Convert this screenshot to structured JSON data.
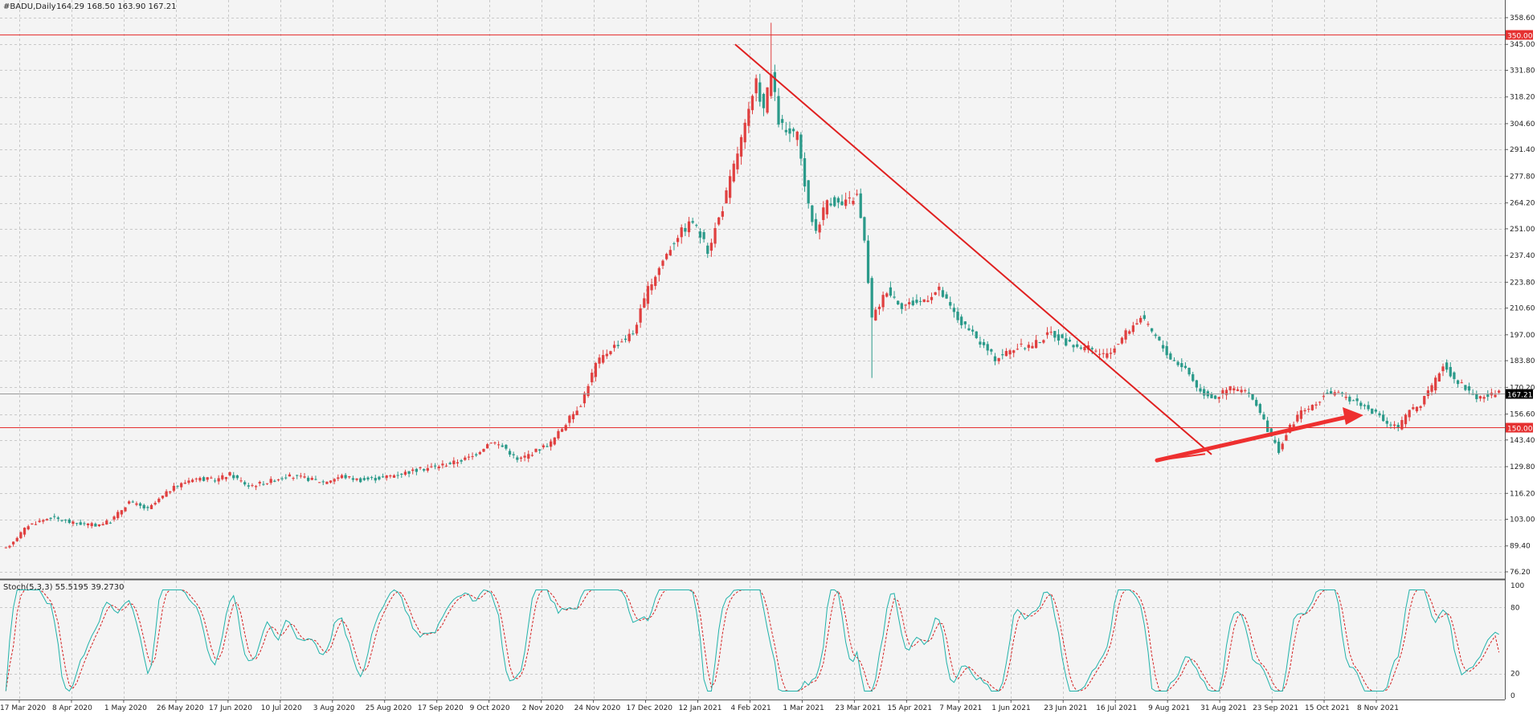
{
  "header": {
    "symbol_info": "#BADU,Daily",
    "ohlc": "164.29 168.50 163.90 167.21"
  },
  "stoch_header": {
    "label": "Stoch(5,3,3) 55.5195 39.2730"
  },
  "colors": {
    "background": "#f4f4f4",
    "grid": "#c8c8c8",
    "bull": "#e04040",
    "bear": "#2b9a8a",
    "level_line": "#e53030",
    "trend_line": "#e02020",
    "stoch_main": "#20b2aa",
    "stoch_signal": "#d42020",
    "axis_text": "#222222"
  },
  "chart_data": [
    {
      "type": "candlestick",
      "title": "#BADU,Daily",
      "x_tick_labels": [
        "17 Mar 2020",
        "8 Apr 2020",
        "1 May 2020",
        "26 May 2020",
        "17 Jun 2020",
        "10 Jul 2020",
        "3 Aug 2020",
        "25 Aug 2020",
        "17 Sep 2020",
        "9 Oct 2020",
        "2 Nov 2020",
        "24 Nov 2020",
        "17 Dec 2020",
        "12 Jan 2021",
        "4 Feb 2021",
        "1 Mar 2021",
        "23 Mar 2021",
        "15 Apr 2021",
        "7 May 2021",
        "1 Jun 2021",
        "23 Jun 2021",
        "16 Jul 2021",
        "9 Aug 2021",
        "31 Aug 2021",
        "23 Sep 2021",
        "15 Oct 2021",
        "8 Nov 2021"
      ],
      "y_tick_labels": [
        "358.60",
        "345.00",
        "331.80",
        "318.20",
        "304.60",
        "291.40",
        "277.80",
        "264.20",
        "251.00",
        "237.40",
        "223.80",
        "210.60",
        "197.00",
        "183.80",
        "170.20",
        "156.60",
        "143.40",
        "129.80",
        "116.20",
        "103.00",
        "89.40",
        "76.20"
      ],
      "ylim": [
        76.2,
        358.6
      ],
      "last_price": "167.21",
      "horizontal_levels": [
        {
          "value": 350.0,
          "label": "350.00"
        },
        {
          "value": 150.0,
          "label": "150.00"
        }
      ],
      "anchor_closes": [
        [
          0,
          88
        ],
        [
          6,
          100
        ],
        [
          12,
          104
        ],
        [
          18,
          101
        ],
        [
          24,
          100
        ],
        [
          28,
          102
        ],
        [
          33,
          112
        ],
        [
          38,
          108
        ],
        [
          44,
          118
        ],
        [
          50,
          124
        ],
        [
          56,
          123
        ],
        [
          60,
          126
        ],
        [
          65,
          120
        ],
        [
          70,
          122
        ],
        [
          75,
          125
        ],
        [
          80,
          124
        ],
        [
          85,
          122
        ],
        [
          90,
          125
        ],
        [
          95,
          123
        ],
        [
          100,
          124
        ],
        [
          105,
          126
        ],
        [
          110,
          128
        ],
        [
          115,
          130
        ],
        [
          120,
          132
        ],
        [
          125,
          135
        ],
        [
          130,
          143
        ],
        [
          134,
          139
        ],
        [
          137,
          133
        ],
        [
          142,
          138
        ],
        [
          146,
          142
        ],
        [
          150,
          152
        ],
        [
          154,
          162
        ],
        [
          158,
          182
        ],
        [
          162,
          190
        ],
        [
          168,
          198
        ],
        [
          172,
          220
        ],
        [
          176,
          235
        ],
        [
          180,
          248
        ],
        [
          184,
          255
        ],
        [
          188,
          240
        ],
        [
          192,
          262
        ],
        [
          196,
          290
        ],
        [
          199,
          310
        ],
        [
          201,
          325
        ],
        [
          203,
          312
        ],
        [
          205,
          330
        ],
        [
          207,
          306
        ],
        [
          209,
          300
        ],
        [
          212,
          298
        ],
        [
          215,
          262
        ],
        [
          217,
          250
        ],
        [
          220,
          266
        ],
        [
          224,
          263
        ],
        [
          228,
          268
        ],
        [
          230,
          244
        ],
        [
          232,
          205
        ],
        [
          236,
          220
        ],
        [
          240,
          212
        ],
        [
          245,
          214
        ],
        [
          250,
          220
        ],
        [
          255,
          205
        ],
        [
          260,
          195
        ],
        [
          265,
          185
        ],
        [
          270,
          190
        ],
        [
          275,
          192
        ],
        [
          280,
          198
        ],
        [
          285,
          192
        ],
        [
          290,
          190
        ],
        [
          295,
          186
        ],
        [
          300,
          198
        ],
        [
          304,
          206
        ],
        [
          308,
          196
        ],
        [
          312,
          185
        ],
        [
          316,
          180
        ],
        [
          320,
          168
        ],
        [
          324,
          165
        ],
        [
          328,
          170
        ],
        [
          332,
          168
        ],
        [
          335,
          162
        ],
        [
          338,
          148
        ],
        [
          341,
          138
        ],
        [
          344,
          150
        ],
        [
          347,
          158
        ],
        [
          350,
          160
        ],
        [
          354,
          168
        ],
        [
          358,
          166
        ],
        [
          362,
          163
        ],
        [
          366,
          158
        ],
        [
          370,
          152
        ],
        [
          373,
          150
        ],
        [
          376,
          158
        ],
        [
          379,
          162
        ],
        [
          382,
          170
        ],
        [
          385,
          182
        ],
        [
          388,
          175
        ],
        [
          391,
          170
        ],
        [
          394,
          165
        ],
        [
          397,
          166
        ],
        [
          400,
          167
        ]
      ],
      "trend_line": {
        "from": [
          "4 Feb 2021",
          345
        ],
        "to": [
          "16 Aug 2021",
          135
        ],
        "color": "red"
      },
      "up_arrow": {
        "from": [
          "Aug 2021",
          132
        ],
        "to": [
          "Nov 2021",
          157
        ],
        "color": "red"
      }
    },
    {
      "type": "line",
      "title": "Stoch(5,3,3) 55.5195 39.2730",
      "y_tick_labels": [
        "100",
        "80",
        "20",
        "0"
      ],
      "ylim": [
        0,
        100
      ],
      "series": [
        {
          "name": "Stoch main",
          "period": 5,
          "latest": 55.5195
        },
        {
          "name": "Stoch signal",
          "period": 3,
          "latest": 39.273
        }
      ]
    }
  ]
}
